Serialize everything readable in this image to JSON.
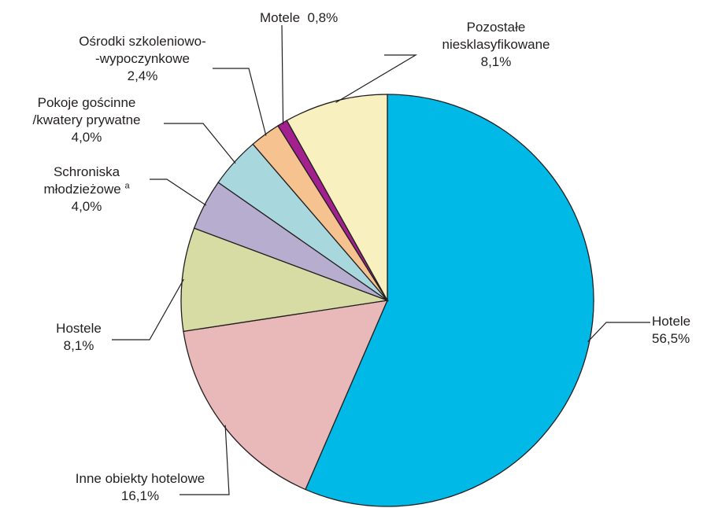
{
  "chart_data": {
    "type": "pie",
    "start_angle_deg": 0,
    "direction": "clockwise",
    "slices": [
      {
        "key": "hotele",
        "label_lines": [
          "Hotele"
        ],
        "value_label": "56,5%",
        "value": 56.5,
        "color": "#00b9e6"
      },
      {
        "key": "inne",
        "label_lines": [
          "Inne obiekty hotelowe"
        ],
        "value_label": "16,1%",
        "value": 16.1,
        "color": "#e9b8b8"
      },
      {
        "key": "hostele",
        "label_lines": [
          "Hostele"
        ],
        "value_label": "8,1%",
        "value": 8.1,
        "color": "#d7dca4"
      },
      {
        "key": "schroniska",
        "label_lines": [
          "Schroniska",
          "młodzieżowe"
        ],
        "superscript": "a",
        "value_label": "4,0%",
        "value": 4.0,
        "color": "#b6adcf"
      },
      {
        "key": "pokoje",
        "label_lines": [
          "Pokoje gościnne",
          "/kwatery prywatne"
        ],
        "value_label": "4,0%",
        "value": 4.0,
        "color": "#a8d8de"
      },
      {
        "key": "osrodki",
        "label_lines": [
          "Ośrodki szkoleniowo-",
          "-wypoczynkowe"
        ],
        "value_label": "2,4%",
        "value": 2.4,
        "color": "#f6c28f"
      },
      {
        "key": "motele",
        "label_lines": [
          "Motele"
        ],
        "value_label": "0,8%",
        "value": 0.8,
        "color": "#a3218e"
      },
      {
        "key": "pozostale",
        "label_lines": [
          "Pozostałe",
          "niesklasyfikowane"
        ],
        "value_label": "8,1%",
        "value": 8.1,
        "color": "#f8f0be"
      }
    ]
  }
}
